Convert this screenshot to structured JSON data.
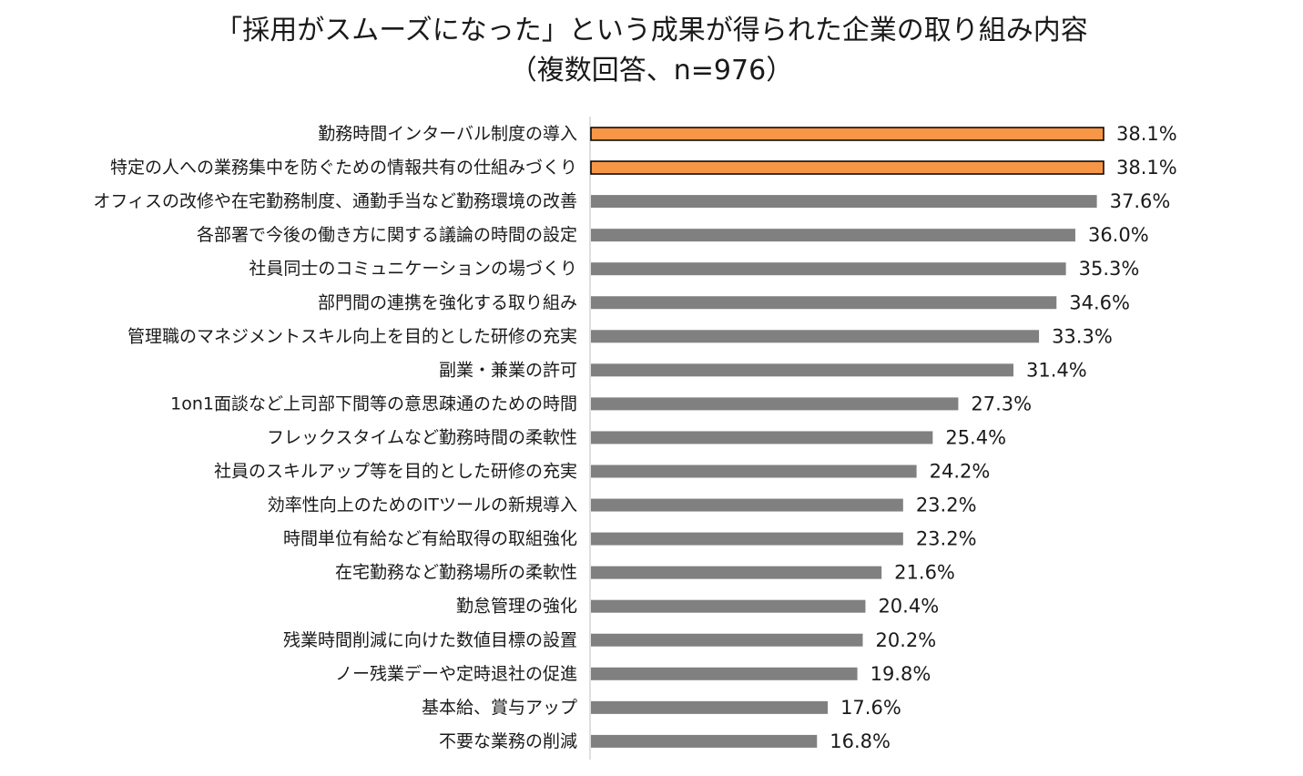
{
  "chart_data": {
    "type": "bar",
    "orientation": "horizontal",
    "title_line1": "「採用がスムーズになった」という成果が得られた企業の取り組み内容",
    "title_line2": "（複数回答、n=976）",
    "value_suffix": "%",
    "xlim": [
      0,
      40
    ],
    "highlight_color": "#F79646",
    "default_color": "#808080",
    "categories": [
      "勤務時間インターバル制度の導入",
      "特定の人への業務集中を防ぐための情報共有の仕組みづくり",
      "オフィスの改修や在宅勤務制度、通勤手当など勤務環境の改善",
      "各部署で今後の働き方に関する議論の時間の設定",
      "社員同士のコミュニケーションの場づくり",
      "部門間の連携を強化する取り組み",
      "管理職のマネジメントスキル向上を目的とした研修の充実",
      "副業・兼業の許可",
      "1on1面談など上司部下間等の意思疎通のための時間",
      "フレックスタイムなど勤務時間の柔軟性",
      "社員のスキルアップ等を目的とした研修の充実",
      "効率性向上のためのITツールの新規導入",
      "時間単位有給など有給取得の取組強化",
      "在宅勤務など勤務場所の柔軟性",
      "勤怠管理の強化",
      "残業時間削減に向けた数値目標の設置",
      "ノー残業デーや定時退社の促進",
      "基本給、賞与アップ",
      "不要な業務の削減"
    ],
    "values": [
      38.1,
      38.1,
      37.6,
      36.0,
      35.3,
      34.6,
      33.3,
      31.4,
      27.3,
      25.4,
      24.2,
      23.2,
      23.2,
      21.6,
      20.4,
      20.2,
      19.8,
      17.6,
      16.8
    ],
    "value_labels": [
      "38.1%",
      "38.1%",
      "37.6%",
      "36.0%",
      "35.3%",
      "34.6%",
      "33.3%",
      "31.4%",
      "27.3%",
      "25.4%",
      "24.2%",
      "23.2%",
      "23.2%",
      "21.6%",
      "20.4%",
      "20.2%",
      "19.8%",
      "17.6%",
      "16.8%"
    ],
    "highlighted": [
      true,
      true,
      false,
      false,
      false,
      false,
      false,
      false,
      false,
      false,
      false,
      false,
      false,
      false,
      false,
      false,
      false,
      false,
      false
    ]
  }
}
